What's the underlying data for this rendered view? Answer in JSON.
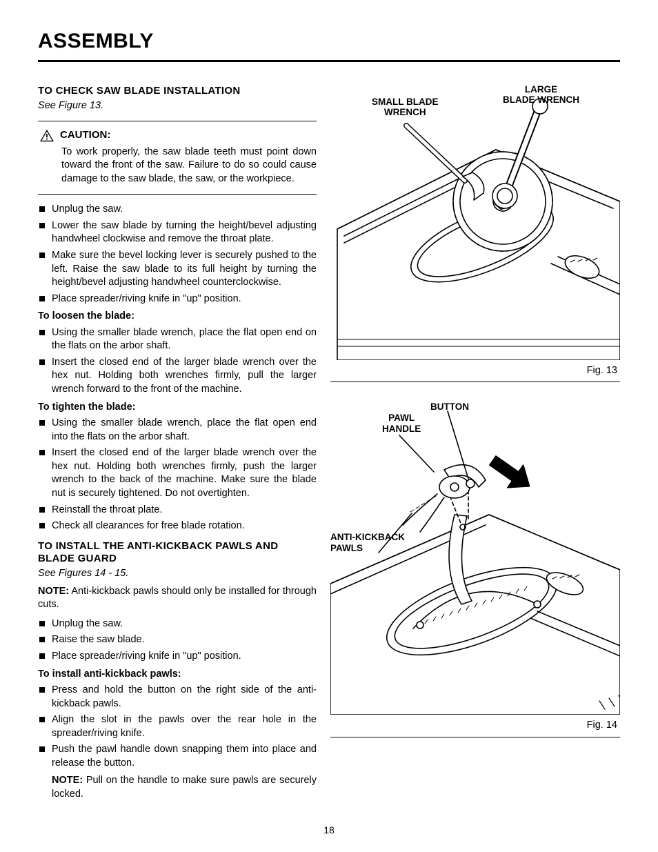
{
  "pageTitle": "ASSEMBLY",
  "pageNumber": "18",
  "left": {
    "section1": {
      "heading": "TO CHECK SAW BLADE INSTALLATION",
      "seeFigure": "See Figure 13.",
      "caution": {
        "label": "CAUTION:",
        "text": "To work properly, the saw blade teeth must point down toward the front of the saw. Failure to do so could cause damage to the saw blade, the saw, or the workpiece."
      },
      "bullets1": [
        "Unplug the saw.",
        "Lower the saw blade by turning the height/bevel adjusting handwheel clockwise and remove the throat plate.",
        "Make sure the bevel locking lever is securely pushed to the left. Raise the saw blade to its full height by turning the height/bevel adjusting handwheel counterclockwise.",
        "Place spreader/riving knife in \"up\" position."
      ],
      "loosenHeading": "To loosen the blade:",
      "loosenBullets": [
        "Using the smaller blade wrench, place the flat open end on the flats on the arbor shaft.",
        "Insert the closed end of the larger blade wrench over the hex nut. Holding both wrenches firmly, pull the larger wrench forward to the front of the machine."
      ],
      "tightenHeading": "To tighten the blade:",
      "tightenBullets": [
        "Using the smaller blade wrench, place the flat open end into the flats on the arbor shaft.",
        "Insert the closed end of the larger blade wrench over the hex nut. Holding both wrenches firmly, push the larger wrench to the back of the machine. Make sure the blade nut is securely tightened. Do not overtighten.",
        "Reinstall the throat plate.",
        "Check all clearances for free blade rotation."
      ]
    },
    "section2": {
      "heading": "TO INSTALL THE ANTI-KICKBACK PAWLS AND BLADE GUARD",
      "seeFigure": "See Figures 14 - 15.",
      "noteLabel": "NOTE:",
      "noteText": " Anti-kickback pawls should only be installed for through cuts.",
      "bullets1": [
        "Unplug the saw.",
        "Raise the saw blade.",
        "Place spreader/riving knife in \"up\" position."
      ],
      "installHeading": "To install anti-kickback pawls:",
      "installBullets": [
        "Press and hold the button on the right side of the anti-kickback pawls.",
        "Align the slot in the pawls over the rear hole in the spreader/riving knife.",
        "Push the pawl handle down snapping them into place and release the button."
      ],
      "note2Label": "NOTE:",
      "note2Text": " Pull on the handle to make sure pawls are securely locked."
    }
  },
  "figures": {
    "fig13": {
      "caption": "Fig. 13",
      "labels": {
        "smallWrench": "SMALL BLADE\nWRENCH",
        "largeWrench": "LARGE\nBLADE WRENCH"
      },
      "colors": {
        "stroke": "#000000",
        "fill": "#ffffff"
      }
    },
    "fig14": {
      "caption": "Fig. 14",
      "labels": {
        "button": "BUTTON",
        "pawlHandle": "PAWL\nHANDLE",
        "antiKickback": "ANTI-KICKBACK\nPAWLS"
      },
      "colors": {
        "stroke": "#000000",
        "fill": "#ffffff"
      }
    }
  }
}
